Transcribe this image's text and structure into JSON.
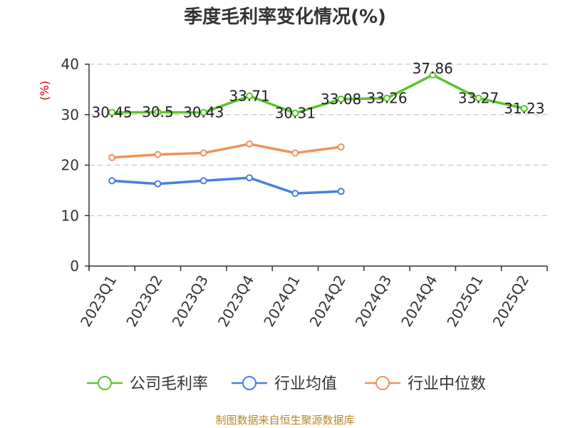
{
  "chart_data": {
    "type": "line",
    "title": "季度毛利率变化情况(%)",
    "ylabel": "(%)",
    "ylim": [
      0,
      40
    ],
    "yticks": [
      0,
      10,
      20,
      30,
      40
    ],
    "grid": true,
    "legend_position": "bottom",
    "categories": [
      "2023Q1",
      "2023Q2",
      "2023Q3",
      "2023Q4",
      "2024Q1",
      "2024Q2",
      "2024Q3",
      "2024Q4",
      "2025Q1",
      "2025Q2"
    ],
    "series": [
      {
        "name": "公司毛利率",
        "color": "#5cc52c",
        "values": [
          30.45,
          30.5,
          30.43,
          33.71,
          30.31,
          33.08,
          33.26,
          37.86,
          33.27,
          31.23
        ],
        "labels": [
          "30.45",
          "30.5",
          "30.43",
          "33.71",
          "30.31",
          "33.08",
          "33.26",
          "37.86",
          "33.27",
          "31.23"
        ]
      },
      {
        "name": "行业均值",
        "color": "#4a7fdd",
        "values": [
          16.9,
          16.3,
          16.9,
          17.5,
          14.4,
          14.8,
          null,
          null,
          null,
          null
        ]
      },
      {
        "name": "行业中位数",
        "color": "#f0925a",
        "values": [
          21.5,
          22.1,
          22.4,
          24.2,
          22.4,
          23.6,
          null,
          null,
          null,
          null
        ]
      }
    ],
    "source": "制图数据来自恒生聚源数据库"
  }
}
